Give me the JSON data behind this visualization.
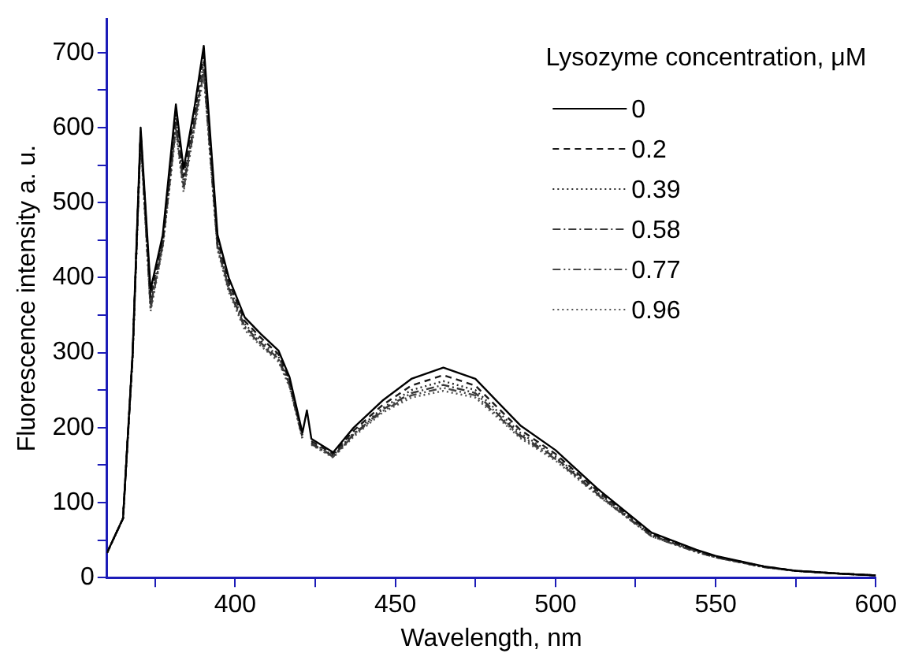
{
  "chart_data": {
    "type": "line",
    "xlabel": "Wavelength, nm",
    "ylabel": "Fluorescence intensity a. u.",
    "legend_title": "Lysozyme concentration, μM",
    "legend": "top right",
    "grid": false,
    "marker": "none",
    "xlim": [
      360,
      600
    ],
    "xticks": [
      {
        "value": 375,
        "label": null
      },
      400,
      {
        "value": 425,
        "label": null
      },
      450,
      {
        "value": 475,
        "label": null
      },
      500,
      {
        "value": 525,
        "label": null
      },
      550,
      {
        "value": 575,
        "label": null
      },
      600
    ],
    "ylim": [
      0,
      745
    ],
    "yticks": [
      0,
      {
        "value": 50,
        "label": null
      },
      100,
      {
        "value": 150,
        "label": null
      },
      200,
      {
        "value": 250,
        "label": null
      },
      300,
      {
        "value": 350,
        "label": null
      },
      400,
      {
        "value": 450,
        "label": null
      },
      500,
      {
        "value": 550,
        "label": null
      },
      600,
      {
        "value": 650,
        "label": null
      },
      700
    ],
    "x": [
      360,
      365,
      368,
      370.5,
      373.6,
      377.4,
      381.5,
      383.9,
      387.3,
      390.2,
      394.5,
      398,
      403,
      408,
      413.5,
      417,
      421,
      422.4,
      423.8,
      430.6,
      437,
      446,
      455,
      465,
      475,
      489,
      500,
      513,
      530,
      544,
      550,
      565,
      575,
      590,
      600
    ],
    "series": [
      {
        "name": "0",
        "color": "#000000",
        "line_style": "solid",
        "values": [
          33,
          79,
          300,
          600,
          384,
          457,
          631,
          545,
          627,
          709,
          457,
          400,
          347,
          325,
          303,
          267,
          193,
          223,
          185,
          167,
          200,
          236,
          265,
          280,
          265,
          203,
          170,
          119,
          60,
          37,
          29,
          15,
          9,
          5,
          3
        ]
      },
      {
        "name": "0.2",
        "color": "#1a1a1a",
        "line_style": "dashed",
        "values": [
          33,
          79,
          298,
          595,
          375,
          452,
          620,
          535,
          618,
          698,
          450,
          394,
          342,
          320,
          298,
          263,
          190,
          null,
          182,
          165,
          196,
          230,
          256,
          270,
          256,
          197,
          165,
          116,
          58,
          36,
          28,
          15,
          9,
          5,
          3
        ]
      },
      {
        "name": "0.39",
        "color": "#2a2a2a",
        "line_style": "dotted",
        "values": [
          33,
          79,
          297,
          592,
          368,
          448,
          612,
          528,
          612,
          688,
          446,
          390,
          338,
          316,
          295,
          260,
          188,
          null,
          180,
          163,
          193,
          226,
          250,
          262,
          250,
          193,
          162,
          114,
          57,
          35,
          28,
          14,
          9,
          5,
          3
        ]
      },
      {
        "name": "0.58",
        "color": "#383838",
        "line_style": "dashdot",
        "values": [
          33,
          79,
          296,
          590,
          362,
          445,
          605,
          522,
          606,
          680,
          442,
          386,
          335,
          313,
          292,
          258,
          187,
          null,
          179,
          162,
          191,
          224,
          246,
          257,
          246,
          190,
          160,
          112,
          56,
          35,
          27,
          14,
          9,
          5,
          3
        ]
      },
      {
        "name": "0.77",
        "color": "#454545",
        "line_style": "dashdotdot",
        "values": [
          33,
          79,
          295,
          588,
          358,
          443,
          600,
          518,
          602,
          675,
          440,
          384,
          333,
          311,
          290,
          256,
          186,
          null,
          178,
          161,
          190,
          222,
          243,
          253,
          243,
          188,
          158,
          111,
          55,
          34,
          27,
          14,
          9,
          5,
          3
        ]
      },
      {
        "name": "0.96",
        "color": "#525252",
        "line_style": "dotted",
        "values": [
          33,
          79,
          294,
          585,
          355,
          440,
          595,
          514,
          598,
          670,
          437,
          381,
          330,
          309,
          288,
          254,
          185,
          null,
          177,
          160,
          188,
          220,
          240,
          249,
          240,
          186,
          156,
          110,
          55,
          34,
          27,
          14,
          9,
          5,
          3
        ]
      }
    ]
  }
}
